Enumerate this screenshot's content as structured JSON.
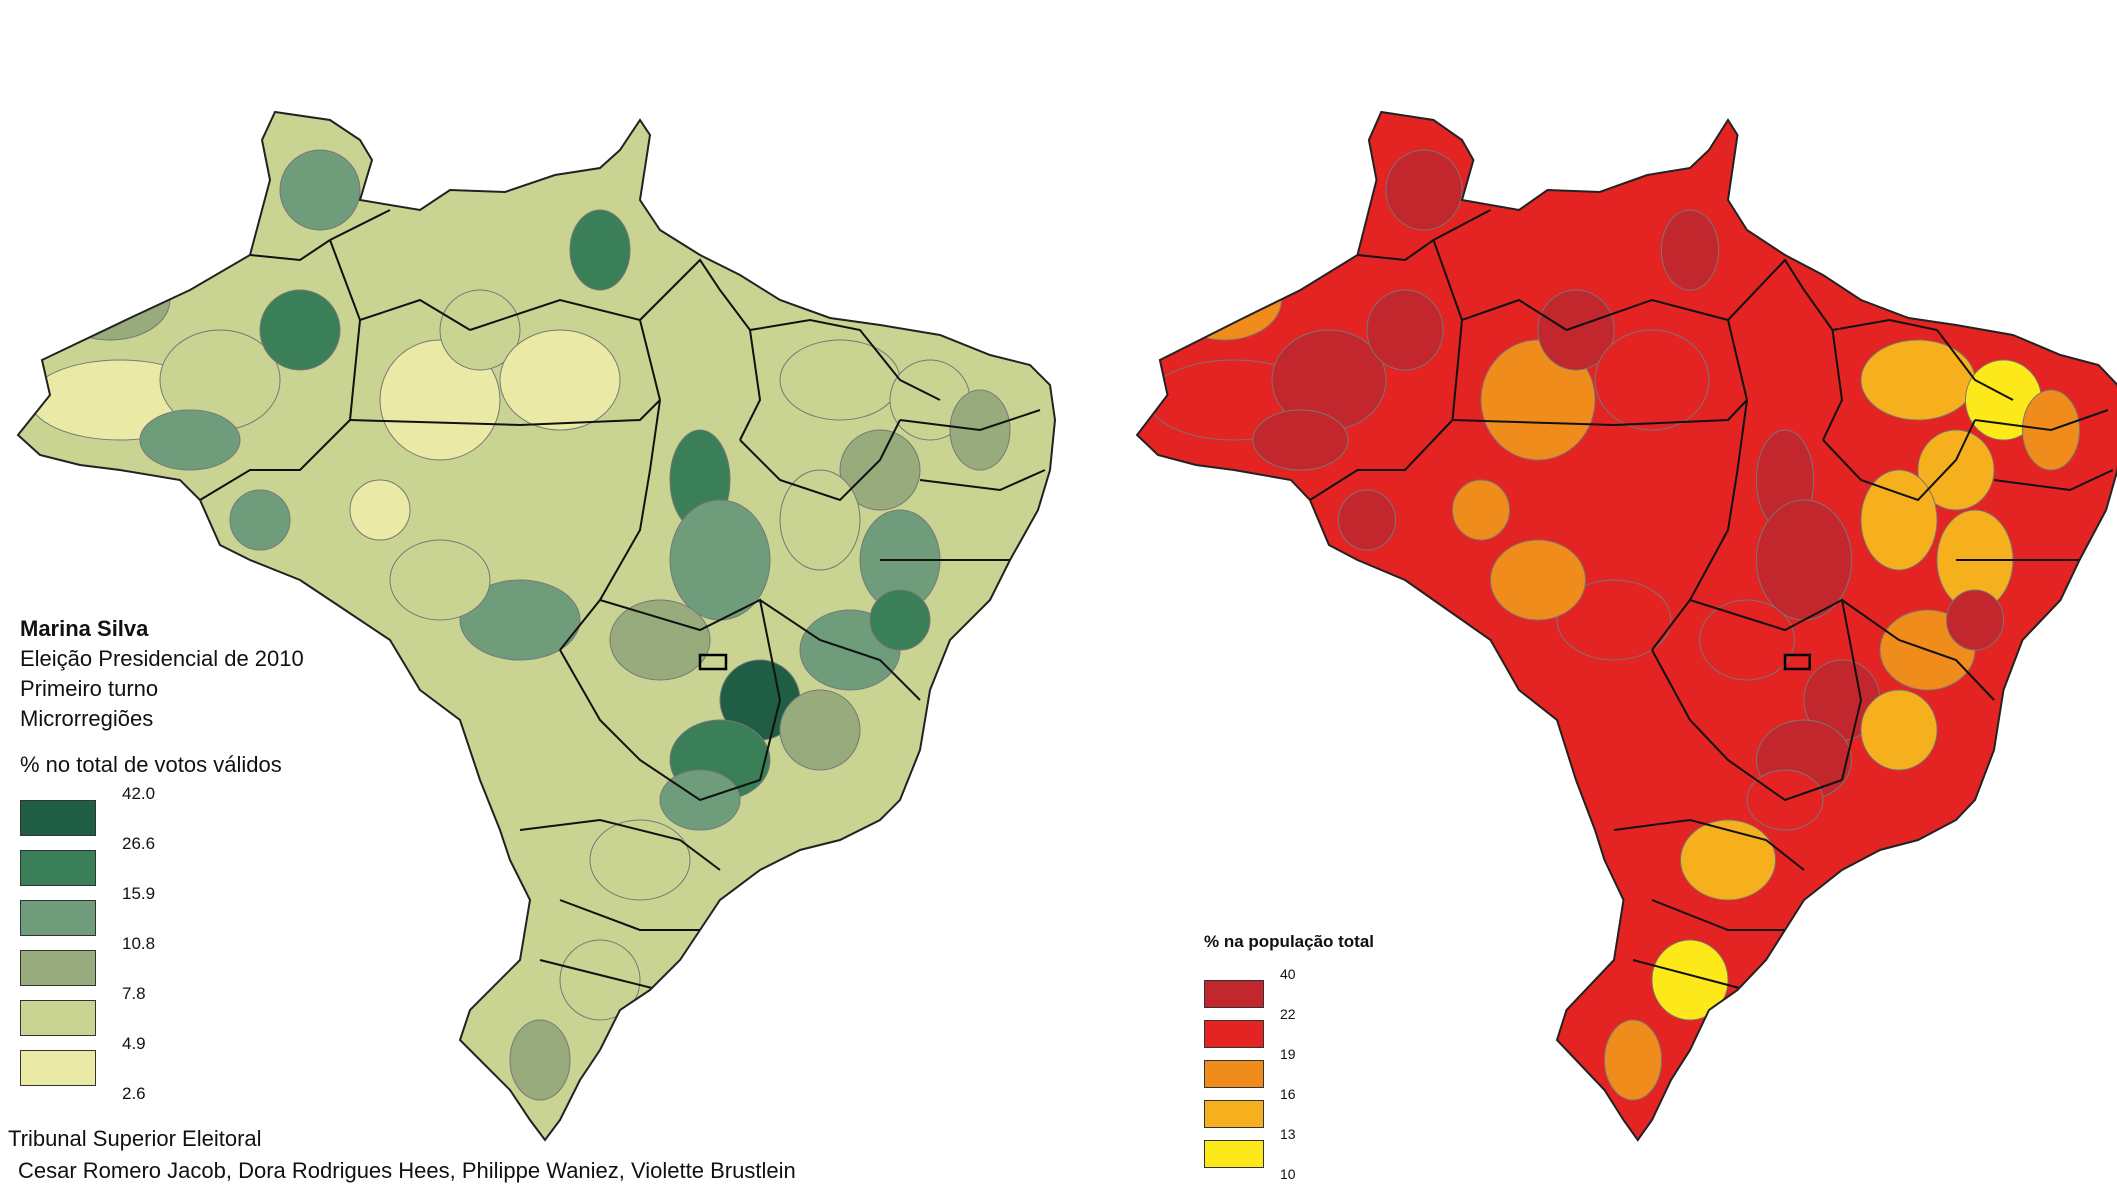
{
  "left_map": {
    "title": "Marina Silva",
    "subtitle_1": "Eleição Presidencial de 2010",
    "subtitle_2": "Primeiro turno",
    "subtitle_3": "Microrregiões",
    "legend_title": "% no total de votos válidos",
    "breaks": [
      "42.0",
      "26.6",
      "15.9",
      "10.8",
      "7.8",
      "4.9",
      "2.6"
    ],
    "class_colors": [
      "#1f5d45",
      "#3a7f57",
      "#6f9d7b",
      "#98ab7c",
      "#c9d493",
      "#eaeaa6"
    ],
    "source": "Tribunal Superior Eleitoral",
    "authors": "Cesar Romero Jacob, Dora Rodrigues Hees, Philippe Waniez, Violette Brustlein"
  },
  "right_map": {
    "legend_title": "% na população total",
    "breaks": [
      "40",
      "22",
      "19",
      "16",
      "13",
      "10"
    ],
    "class_colors": [
      "#c1272d",
      "#e32422",
      "#f08c1c",
      "#f6b01e",
      "#fde81a"
    ]
  }
}
